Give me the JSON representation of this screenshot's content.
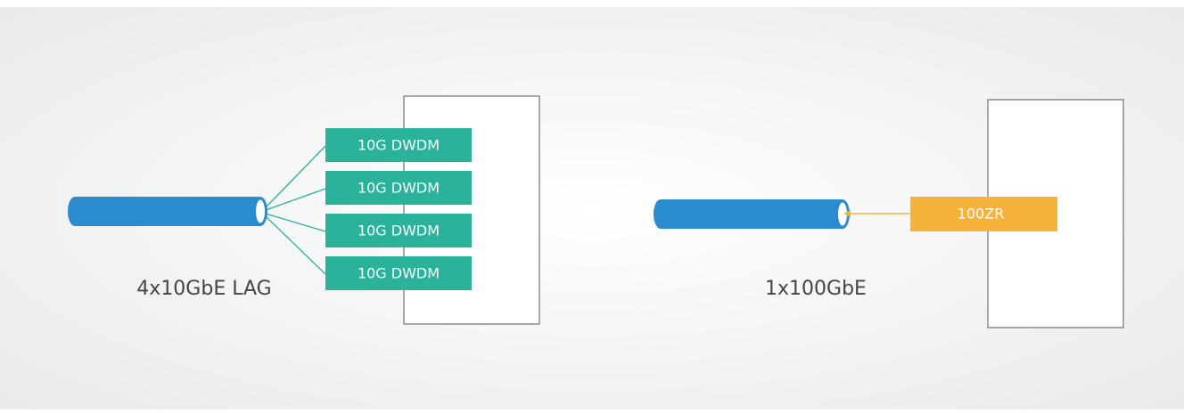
{
  "left": {
    "modules": [
      "10G DWDM",
      "10G DWDM",
      "10G DWDM",
      "10G DWDM"
    ],
    "label": "4x10GbE LAG"
  },
  "right": {
    "module": "100ZR",
    "label": "1x100GbE"
  }
}
